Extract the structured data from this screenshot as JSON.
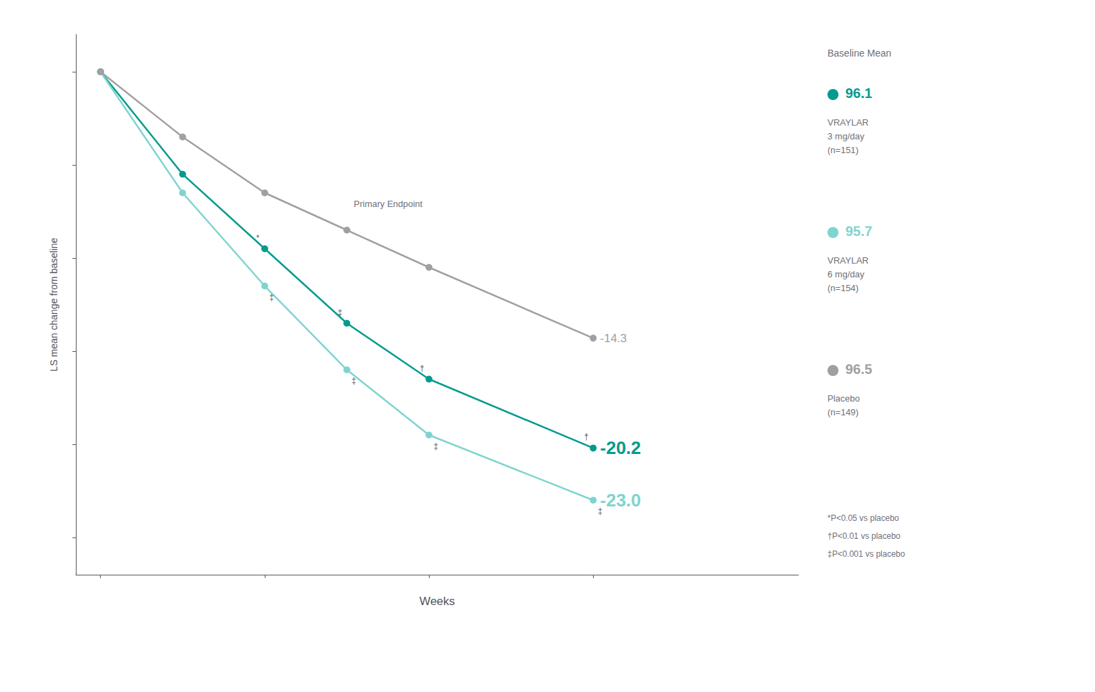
{
  "chart_data": {
    "type": "line",
    "x_label": "Weeks",
    "y_label": "LS mean change from baseline",
    "x": [
      0,
      1,
      2,
      3,
      4,
      6
    ],
    "series": [
      {
        "name": "VRAYLAR\n3 mg/day\n(n=151)",
        "color": "#009B8D",
        "values": [
          0,
          -5.5,
          -9.5,
          -13.5,
          -16.5,
          -20.2
        ],
        "value_labels": [
          null,
          null,
          null,
          null,
          null,
          "-20.2"
        ],
        "significance": [
          null,
          null,
          "*",
          "‡",
          "†",
          "†"
        ],
        "baseline": 96.1
      },
      {
        "name": "VRAYLAR\n6 mg/day\n(n=154)",
        "color": "#7FD4CF",
        "values": [
          0,
          -6.5,
          -11.5,
          -16.0,
          -19.5,
          -23.0
        ],
        "value_labels": [
          null,
          null,
          null,
          null,
          null,
          "-23.0"
        ],
        "significance": [
          null,
          null,
          "‡",
          "‡",
          "‡",
          "‡"
        ],
        "baseline": 95.7
      },
      {
        "name": "Placebo\n(n=149)",
        "color": "#A0A0A0",
        "values": [
          0,
          -3.5,
          -6.5,
          -8.5,
          -10.5,
          -14.3
        ],
        "value_labels": [
          null,
          null,
          null,
          null,
          null,
          "-14.3"
        ],
        "baseline": 96.5
      }
    ],
    "xlim": [
      -0.3,
      8.5
    ],
    "ylim": [
      -27,
      2
    ],
    "xticks": [
      0,
      2,
      4,
      6
    ],
    "yticks": [
      0,
      -5,
      -10,
      -15,
      -20,
      -25
    ],
    "tick_labels": false,
    "grid": false,
    "marker": "circle",
    "legend": "right",
    "legend_title": "Baseline Mean",
    "annotations": [
      "Primary Endpoint"
    ],
    "footnotes": [
      "*P<0.05 vs placebo",
      "†P<0.01 vs placebo",
      "‡P<0.001 vs placebo"
    ]
  }
}
